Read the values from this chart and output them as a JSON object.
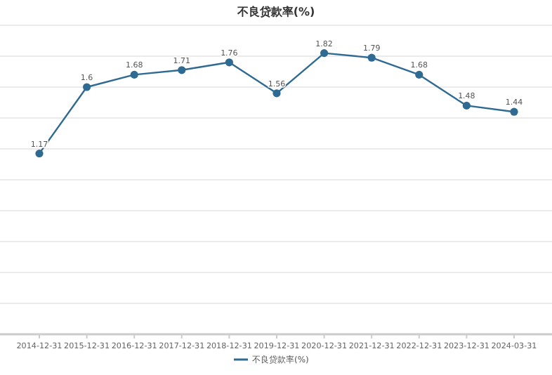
{
  "chart_data": {
    "type": "line",
    "title": "不良贷款率(%)",
    "categories": [
      "2014-12-31",
      "2015-12-31",
      "2016-12-31",
      "2017-12-31",
      "2018-12-31",
      "2019-12-31",
      "2020-12-31",
      "2021-12-31",
      "2022-12-31",
      "2023-12-31",
      "2024-03-31"
    ],
    "series": [
      {
        "name": "不良贷款率(%)",
        "color": "#2e6a92",
        "values": [
          1.17,
          1.6,
          1.68,
          1.71,
          1.76,
          1.56,
          1.82,
          1.79,
          1.68,
          1.48,
          1.44
        ]
      }
    ],
    "ylim": [
      0,
      2
    ],
    "yticks": [
      {
        "value": 0,
        "label": null
      },
      {
        "value": 0.2,
        "label": null
      },
      {
        "value": 0.4,
        "label": null
      },
      {
        "value": 0.6,
        "label": null
      },
      {
        "value": 0.8,
        "label": null
      },
      {
        "value": 1,
        "label": null
      },
      {
        "value": 1.2,
        "label": null
      },
      {
        "value": 1.4,
        "label": null
      },
      {
        "value": 1.6,
        "label": null
      },
      {
        "value": 1.8,
        "label": null
      },
      {
        "value": 2,
        "label": null
      }
    ],
    "tick_labels": "x",
    "grid": "y",
    "legend": "bottom",
    "marker": "circle",
    "line_style": "solid",
    "data_labels": true
  }
}
